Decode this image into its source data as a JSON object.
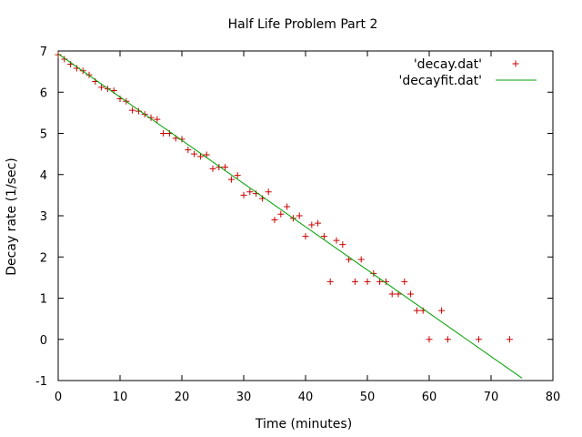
{
  "chart_data": {
    "type": "scatter",
    "title": "Half Life Problem Part 2",
    "xlabel": "Time (minutes)",
    "ylabel": "Decay rate (1/sec)",
    "xlim": [
      0,
      80
    ],
    "ylim": [
      -1,
      7
    ],
    "xticks": [
      0,
      10,
      20,
      30,
      40,
      50,
      60,
      70,
      80
    ],
    "yticks": [
      -1,
      0,
      1,
      2,
      3,
      4,
      5,
      6,
      7
    ],
    "grid": false,
    "legend_position": "top-right",
    "series": [
      {
        "name": "'decay.dat'",
        "kind": "points",
        "marker": "plus",
        "color": "#cc0000",
        "points": [
          [
            0,
            6.91
          ],
          [
            1,
            6.8
          ],
          [
            2,
            6.68
          ],
          [
            3,
            6.58
          ],
          [
            4,
            6.52
          ],
          [
            5,
            6.42
          ],
          [
            6,
            6.26
          ],
          [
            7,
            6.12
          ],
          [
            8,
            6.08
          ],
          [
            9,
            6.04
          ],
          [
            10,
            5.84
          ],
          [
            11,
            5.78
          ],
          [
            12,
            5.56
          ],
          [
            13,
            5.54
          ],
          [
            14,
            5.46
          ],
          [
            15,
            5.38
          ],
          [
            16,
            5.34
          ],
          [
            17,
            5.0
          ],
          [
            18,
            5.0
          ],
          [
            19,
            4.88
          ],
          [
            20,
            4.86
          ],
          [
            21,
            4.6
          ],
          [
            22,
            4.5
          ],
          [
            23,
            4.44
          ],
          [
            24,
            4.48
          ],
          [
            25,
            4.14
          ],
          [
            26,
            4.18
          ],
          [
            27,
            4.18
          ],
          [
            28,
            3.88
          ],
          [
            29,
            3.98
          ],
          [
            30,
            3.5
          ],
          [
            31,
            3.58
          ],
          [
            32,
            3.54
          ],
          [
            33,
            3.42
          ],
          [
            34,
            3.58
          ],
          [
            35,
            2.9
          ],
          [
            36,
            3.04
          ],
          [
            37,
            3.22
          ],
          [
            38,
            2.94
          ],
          [
            39,
            3.0
          ],
          [
            40,
            2.5
          ],
          [
            41,
            2.78
          ],
          [
            42,
            2.82
          ],
          [
            43,
            2.5
          ],
          [
            44,
            1.4
          ],
          [
            45,
            2.4
          ],
          [
            46,
            2.3
          ],
          [
            47,
            1.94
          ],
          [
            48,
            1.4
          ],
          [
            49,
            1.94
          ],
          [
            50,
            1.4
          ],
          [
            51,
            1.6
          ],
          [
            52,
            1.4
          ],
          [
            53,
            1.4
          ],
          [
            54,
            1.1
          ],
          [
            55,
            1.1
          ],
          [
            56,
            1.4
          ],
          [
            57,
            1.1
          ],
          [
            58,
            0.7
          ],
          [
            59,
            0.7
          ],
          [
            60,
            0.0
          ],
          [
            62,
            0.7
          ],
          [
            63,
            0.0
          ],
          [
            68,
            0.0
          ],
          [
            73,
            0.0
          ]
        ]
      },
      {
        "name": "'decayfit.dat'",
        "kind": "line",
        "color": "#00a000",
        "points": [
          [
            0,
            6.93
          ],
          [
            75,
            -0.94
          ]
        ]
      }
    ]
  }
}
